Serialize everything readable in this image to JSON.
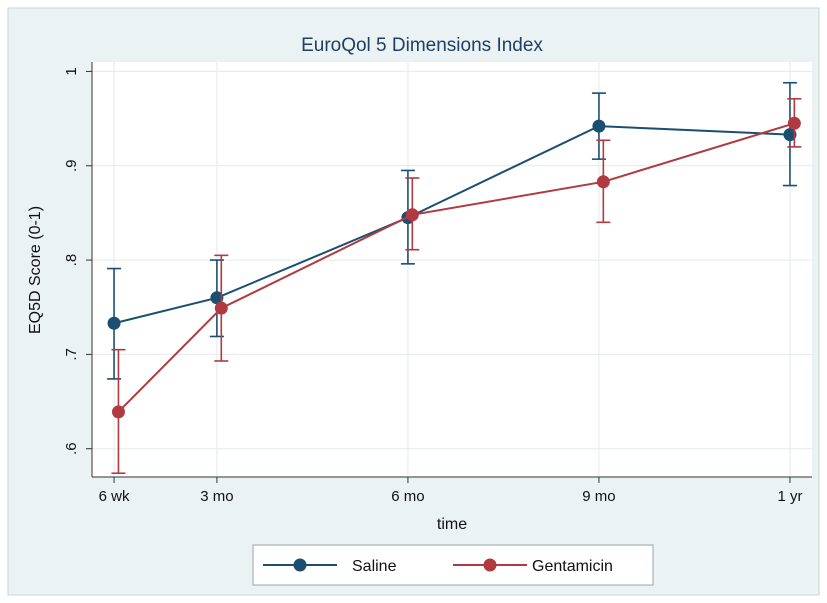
{
  "chart_data": {
    "type": "line",
    "title": "EuroQol 5 Dimensions Index",
    "xlabel": "time",
    "ylabel": "EQ5D Score (0-1)",
    "x_ticks": [
      {
        "label": "6 wk",
        "weeks": 6
      },
      {
        "label": "3 mo",
        "weeks": 13
      },
      {
        "label": "6 mo",
        "weeks": 26
      },
      {
        "label": "9 mo",
        "weeks": 39
      },
      {
        "label": "1 yr",
        "weeks": 52
      }
    ],
    "xlim": [
      4.5,
      53.5
    ],
    "ylim": [
      0.57,
      1.01
    ],
    "y_ticks": [
      {
        "label": ".6",
        "value": 0.6
      },
      {
        "label": ".7",
        "value": 0.7
      },
      {
        "label": ".8",
        "value": 0.8
      },
      {
        "label": ".9",
        "value": 0.9
      },
      {
        "label": "1",
        "value": 1.0
      }
    ],
    "grid": true,
    "legend_position": "bottom",
    "series": [
      {
        "name": "Saline",
        "color": "#1b4f72",
        "points": [
          {
            "x": 6,
            "y": 0.733,
            "lo": 0.674,
            "hi": 0.791
          },
          {
            "x": 13,
            "y": 0.76,
            "lo": 0.719,
            "hi": 0.8
          },
          {
            "x": 26,
            "y": 0.845,
            "lo": 0.796,
            "hi": 0.895
          },
          {
            "x": 39,
            "y": 0.942,
            "lo": 0.907,
            "hi": 0.977
          },
          {
            "x": 52,
            "y": 0.933,
            "lo": 0.879,
            "hi": 0.988
          }
        ]
      },
      {
        "name": "Gentamicin",
        "color": "#b03a3f",
        "points": [
          {
            "x": 6.3,
            "y": 0.639,
            "lo": 0.574,
            "hi": 0.705
          },
          {
            "x": 13.3,
            "y": 0.749,
            "lo": 0.693,
            "hi": 0.805
          },
          {
            "x": 26.3,
            "y": 0.848,
            "lo": 0.811,
            "hi": 0.887
          },
          {
            "x": 39.3,
            "y": 0.883,
            "lo": 0.84,
            "hi": 0.927
          },
          {
            "x": 52.3,
            "y": 0.945,
            "lo": 0.92,
            "hi": 0.971
          }
        ]
      }
    ]
  }
}
